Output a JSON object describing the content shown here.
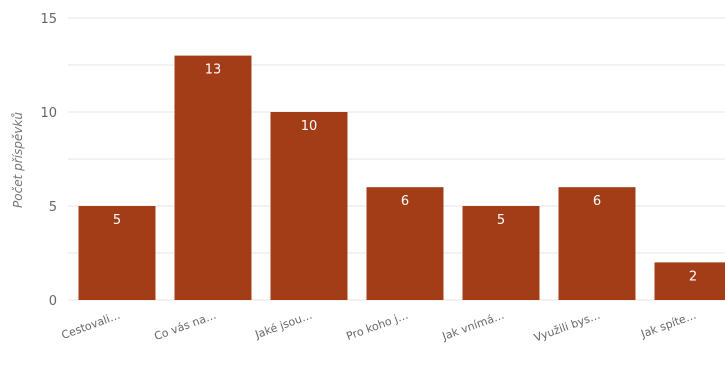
{
  "chart_data": {
    "type": "bar",
    "categories": [
      "Cestovali…",
      "Co vás na…",
      "Jaké jsou…",
      "Pro koho j…",
      "Jak vnímá…",
      "Využili bys…",
      "Jak spíte…"
    ],
    "values": [
      5,
      13,
      10,
      6,
      5,
      6,
      2
    ],
    "title": "",
    "xlabel": "",
    "ylabel": "Počet příspěvků",
    "ylim": [
      0,
      15
    ],
    "yticks": [
      0,
      5,
      10,
      15
    ],
    "grid": true,
    "bar_color": "#a33d17"
  }
}
